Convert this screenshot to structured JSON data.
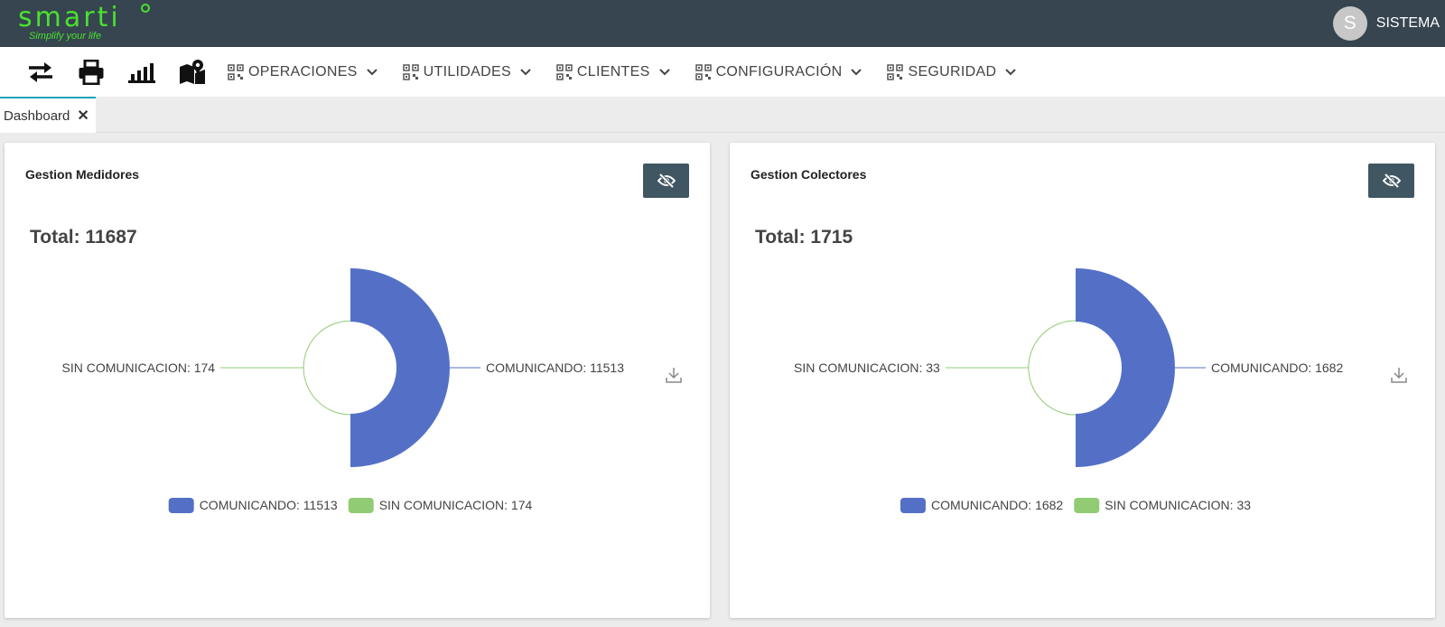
{
  "header": {
    "logo_text": "smarti",
    "logo_tagline": "Simplify your life",
    "user_initial": "S",
    "user_name": "SISTEMA"
  },
  "toolbar": {
    "icons": [
      "transfer-icon",
      "print-icon",
      "signal-icon",
      "map-icon"
    ],
    "menus": [
      {
        "label": "OPERACIONES"
      },
      {
        "label": "UTILIDADES"
      },
      {
        "label": "CLIENTES"
      },
      {
        "label": "CONFIGURACIÓN"
      },
      {
        "label": "SEGURIDAD"
      }
    ]
  },
  "tabs": [
    {
      "label": "Dashboard",
      "close": "✕"
    }
  ],
  "colors": {
    "comunicando": "#5470c6",
    "sin_comunicacion": "#91cc75",
    "accent": "#4be030"
  },
  "cards": [
    {
      "title": "Gestion Medidores",
      "total": "Total: 11687",
      "chart_data": {
        "type": "pie",
        "categories": [
          "COMUNICANDO",
          "SIN COMUNICACION"
        ],
        "values": [
          11513,
          174
        ],
        "labels": [
          "COMUNICANDO: 11513",
          "SIN COMUNICACION: 174"
        ],
        "legend": [
          "COMUNICANDO: 11513",
          "SIN COMUNICACION: 174"
        ],
        "legend_position": "bottom",
        "rose": true
      }
    },
    {
      "title": "Gestion Colectores",
      "total": "Total: 1715",
      "chart_data": {
        "type": "pie",
        "categories": [
          "COMUNICANDO",
          "SIN COMUNICACION"
        ],
        "values": [
          1682,
          33
        ],
        "labels": [
          "COMUNICANDO: 1682",
          "SIN COMUNICACION: 33"
        ],
        "legend": [
          "COMUNICANDO: 1682",
          "SIN COMUNICACION: 33"
        ],
        "legend_position": "bottom",
        "rose": true
      }
    }
  ]
}
